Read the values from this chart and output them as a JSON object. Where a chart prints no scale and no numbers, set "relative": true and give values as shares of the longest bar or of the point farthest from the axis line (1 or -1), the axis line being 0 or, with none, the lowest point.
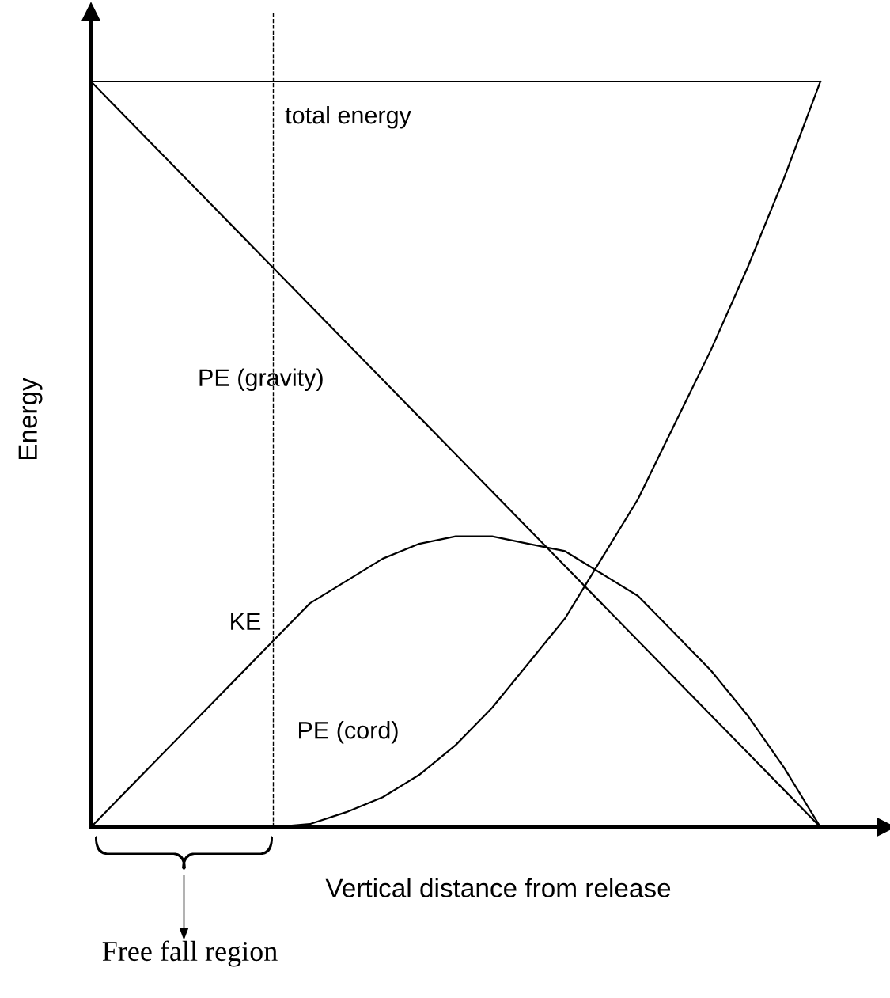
{
  "chart_data": {
    "type": "line",
    "relative": true,
    "xlabel": "Vertical distance from release",
    "ylabel": "Energy",
    "categories": [
      null,
      null,
      null,
      null,
      null,
      null,
      null,
      null,
      null,
      null,
      null,
      null,
      null,
      null,
      null,
      null,
      null,
      null,
      null,
      null,
      null
    ],
    "series": [
      {
        "name": "total energy",
        "color": "#000000",
        "values": [
          1,
          1,
          1,
          1,
          1,
          1,
          1,
          1,
          1,
          1,
          1,
          1,
          1,
          1,
          1,
          1,
          1,
          1,
          1,
          1,
          1
        ]
      },
      {
        "name": "PE (gravity)",
        "color": "#000000",
        "values": [
          1,
          0.95,
          0.9,
          0.85,
          0.8,
          0.75,
          0.7,
          0.65,
          0.6,
          0.55,
          0.5,
          0.45,
          0.4,
          0.35,
          0.3,
          0.25,
          0.2,
          0.15,
          0.1,
          0.05,
          0
        ]
      },
      {
        "name": "KE",
        "color": "#000000",
        "values": [
          0,
          0.05,
          0.1,
          0.15,
          0.2,
          0.25,
          0.3,
          0.33,
          0.36,
          0.38,
          0.39,
          0.39,
          0.38,
          0.37,
          0.34,
          0.31,
          0.26,
          0.21,
          0.15,
          0.08,
          0
        ]
      },
      {
        "name": "PE (cord)",
        "color": "#000000",
        "values": [
          0,
          0,
          0,
          0,
          0,
          0,
          0.004,
          0.02,
          0.04,
          0.07,
          0.11,
          0.16,
          0.22,
          0.28,
          0.36,
          0.44,
          0.54,
          0.64,
          0.75,
          0.87,
          1
        ]
      }
    ],
    "annotations": [
      "Free fall region"
    ],
    "legend": false,
    "tick_labels": false,
    "marker": "none",
    "line_style": "solid"
  }
}
